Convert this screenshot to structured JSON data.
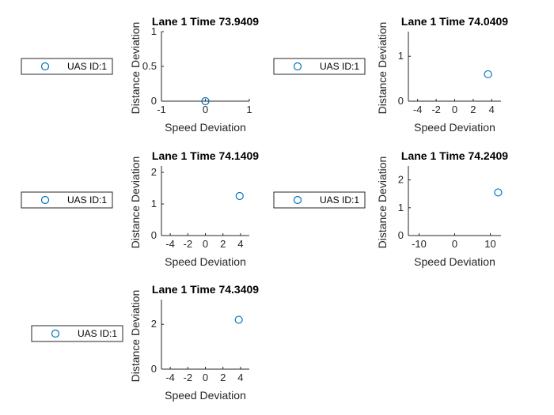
{
  "figure": {
    "background": "#ffffff",
    "marker_color": "#0072bd",
    "axis_color": "#262626"
  },
  "chart_data": [
    {
      "type": "scatter",
      "title": "Lane 1 Time 73.9409",
      "xlabel": "Speed Deviation",
      "ylabel": "Distance Deviation",
      "xlim": [
        -1,
        1
      ],
      "ylim": [
        0,
        1
      ],
      "xticks": [
        -1,
        0,
        1
      ],
      "yticks": [
        0,
        0.5,
        1
      ],
      "series": [
        {
          "name": "UAS ID:1",
          "x": [
            0
          ],
          "y": [
            0
          ],
          "marker": "circle"
        }
      ],
      "legend": "left",
      "grid": false
    },
    {
      "type": "scatter",
      "title": "Lane 1 Time 74.0409",
      "xlabel": "Speed Deviation",
      "ylabel": "Distance Deviation",
      "xlim": [
        -5,
        5
      ],
      "ylim": [
        0,
        1.55
      ],
      "xticks": [
        -4,
        -2,
        0,
        2,
        4
      ],
      "yticks": [
        0,
        1
      ],
      "series": [
        {
          "name": "UAS ID:1",
          "x": [
            3.6
          ],
          "y": [
            0.6
          ],
          "marker": "circle"
        }
      ],
      "legend": "left",
      "grid": false
    },
    {
      "type": "scatter",
      "title": "Lane 1 Time 74.1409",
      "xlabel": "Speed Deviation",
      "ylabel": "Distance Deviation",
      "xlim": [
        -5,
        5
      ],
      "ylim": [
        0,
        2.2
      ],
      "xticks": [
        -4,
        -2,
        0,
        2,
        4
      ],
      "yticks": [
        0,
        1,
        2
      ],
      "series": [
        {
          "name": "UAS ID:1",
          "x": [
            3.9
          ],
          "y": [
            1.25
          ],
          "marker": "circle"
        }
      ],
      "legend": "left",
      "grid": false
    },
    {
      "type": "scatter",
      "title": "Lane 1 Time 74.2409",
      "xlabel": "Speed Deviation",
      "ylabel": "Distance Deviation",
      "xlim": [
        -13,
        13
      ],
      "ylim": [
        0,
        2.5
      ],
      "xticks": [
        -10,
        0,
        10
      ],
      "yticks": [
        0,
        1,
        2
      ],
      "series": [
        {
          "name": "UAS ID:1",
          "x": [
            12.2
          ],
          "y": [
            1.55
          ],
          "marker": "circle"
        }
      ],
      "legend": "left",
      "grid": false
    },
    {
      "type": "scatter",
      "title": "Lane 1 Time 74.3409",
      "xlabel": "Speed Deviation",
      "ylabel": "Distance Deviation",
      "xlim": [
        -5,
        5
      ],
      "ylim": [
        0,
        3.1
      ],
      "xticks": [
        -4,
        -2,
        0,
        2,
        4
      ],
      "yticks": [
        0,
        2
      ],
      "series": [
        {
          "name": "UAS ID:1",
          "x": [
            3.8
          ],
          "y": [
            2.2
          ],
          "marker": "circle"
        }
      ],
      "legend": "left",
      "grid": false
    }
  ]
}
